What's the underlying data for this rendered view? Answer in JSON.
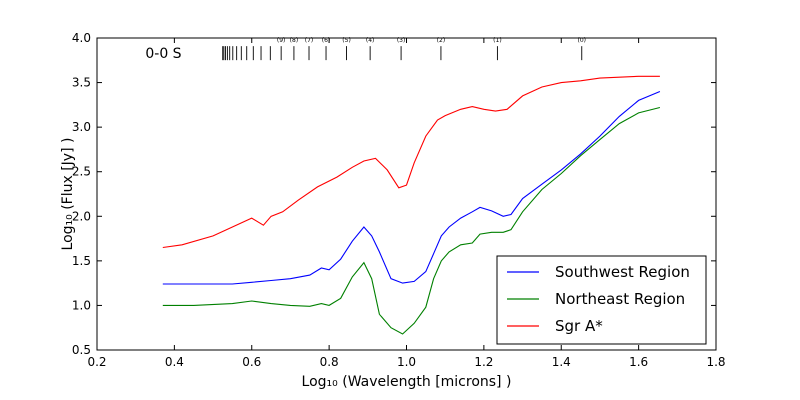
{
  "chart_data": {
    "type": "line",
    "xlabel": "Log₁₀ (Wavelength [microns] )",
    "ylabel": "Log₁₀ (Flux [Jy] )",
    "xlim": [
      0.2,
      1.8
    ],
    "ylim": [
      0.5,
      4.0
    ],
    "xticks": [
      "0.2",
      "0.4",
      "0.6",
      "0.8",
      "1.0",
      "1.2",
      "1.4",
      "1.6",
      "1.8"
    ],
    "yticks": [
      "0.5",
      "1.0",
      "1.5",
      "2.0",
      "2.5",
      "3.0",
      "3.5",
      "4.0"
    ],
    "grid": false,
    "legend_position": "lower-right",
    "annotation": {
      "label": "0-0 S",
      "y": 3.83,
      "lines": [
        {
          "x": 1.453,
          "label": "(0)"
        },
        {
          "x": 1.235,
          "label": "(1)"
        },
        {
          "x": 1.089,
          "label": "(2)"
        },
        {
          "x": 0.986,
          "label": "(3)"
        },
        {
          "x": 0.906,
          "label": "(4)"
        },
        {
          "x": 0.845,
          "label": "(5)"
        },
        {
          "x": 0.792,
          "label": "(6)"
        },
        {
          "x": 0.748,
          "label": "(7)"
        },
        {
          "x": 0.709,
          "label": "(8)"
        },
        {
          "x": 0.676,
          "label": "(9)"
        },
        {
          "x": 0.648,
          "label": ""
        },
        {
          "x": 0.624,
          "label": ""
        },
        {
          "x": 0.604,
          "label": ""
        },
        {
          "x": 0.587,
          "label": ""
        },
        {
          "x": 0.573,
          "label": ""
        },
        {
          "x": 0.561,
          "label": ""
        },
        {
          "x": 0.551,
          "label": ""
        },
        {
          "x": 0.543,
          "label": ""
        },
        {
          "x": 0.537,
          "label": ""
        },
        {
          "x": 0.532,
          "label": ""
        },
        {
          "x": 0.528,
          "label": ""
        },
        {
          "x": 0.525,
          "label": ""
        }
      ]
    },
    "series": [
      {
        "name": "Southwest Region",
        "color": "#0000ff",
        "x": [
          0.37,
          0.45,
          0.55,
          0.6,
          0.65,
          0.7,
          0.75,
          0.78,
          0.8,
          0.83,
          0.86,
          0.89,
          0.91,
          0.93,
          0.96,
          0.99,
          1.02,
          1.05,
          1.07,
          1.09,
          1.11,
          1.14,
          1.17,
          1.19,
          1.22,
          1.25,
          1.27,
          1.3,
          1.35,
          1.4,
          1.45,
          1.5,
          1.55,
          1.6,
          1.655
        ],
        "y": [
          1.24,
          1.24,
          1.24,
          1.26,
          1.28,
          1.3,
          1.34,
          1.42,
          1.4,
          1.52,
          1.72,
          1.88,
          1.78,
          1.6,
          1.3,
          1.25,
          1.27,
          1.38,
          1.58,
          1.78,
          1.88,
          1.98,
          2.05,
          2.1,
          2.06,
          2.0,
          2.02,
          2.2,
          2.36,
          2.52,
          2.7,
          2.9,
          3.12,
          3.3,
          3.4
        ]
      },
      {
        "name": "Northeast Region",
        "color": "#008000",
        "x": [
          0.37,
          0.45,
          0.55,
          0.6,
          0.65,
          0.7,
          0.75,
          0.78,
          0.8,
          0.83,
          0.86,
          0.89,
          0.91,
          0.93,
          0.96,
          0.99,
          1.02,
          1.05,
          1.07,
          1.09,
          1.11,
          1.14,
          1.17,
          1.19,
          1.22,
          1.25,
          1.27,
          1.3,
          1.35,
          1.4,
          1.45,
          1.5,
          1.55,
          1.6,
          1.655
        ],
        "y": [
          1.0,
          1.0,
          1.02,
          1.05,
          1.02,
          1.0,
          0.99,
          1.02,
          1.0,
          1.08,
          1.32,
          1.48,
          1.3,
          0.9,
          0.75,
          0.68,
          0.8,
          0.98,
          1.3,
          1.5,
          1.6,
          1.68,
          1.7,
          1.8,
          1.82,
          1.82,
          1.85,
          2.05,
          2.3,
          2.48,
          2.68,
          2.86,
          3.04,
          3.16,
          3.22
        ]
      },
      {
        "name": "Sgr A*",
        "color": "#ff0000",
        "x": [
          0.37,
          0.42,
          0.5,
          0.55,
          0.6,
          0.63,
          0.65,
          0.68,
          0.72,
          0.77,
          0.82,
          0.86,
          0.89,
          0.92,
          0.95,
          0.98,
          1.0,
          1.02,
          1.05,
          1.08,
          1.1,
          1.14,
          1.17,
          1.2,
          1.23,
          1.26,
          1.3,
          1.35,
          1.4,
          1.45,
          1.5,
          1.55,
          1.6,
          1.655
        ],
        "y": [
          1.65,
          1.68,
          1.78,
          1.88,
          1.98,
          1.9,
          2.0,
          2.05,
          2.18,
          2.33,
          2.44,
          2.55,
          2.62,
          2.65,
          2.52,
          2.32,
          2.35,
          2.6,
          2.9,
          3.08,
          3.13,
          3.2,
          3.23,
          3.2,
          3.18,
          3.2,
          3.35,
          3.45,
          3.5,
          3.52,
          3.55,
          3.56,
          3.57,
          3.57
        ]
      }
    ]
  }
}
